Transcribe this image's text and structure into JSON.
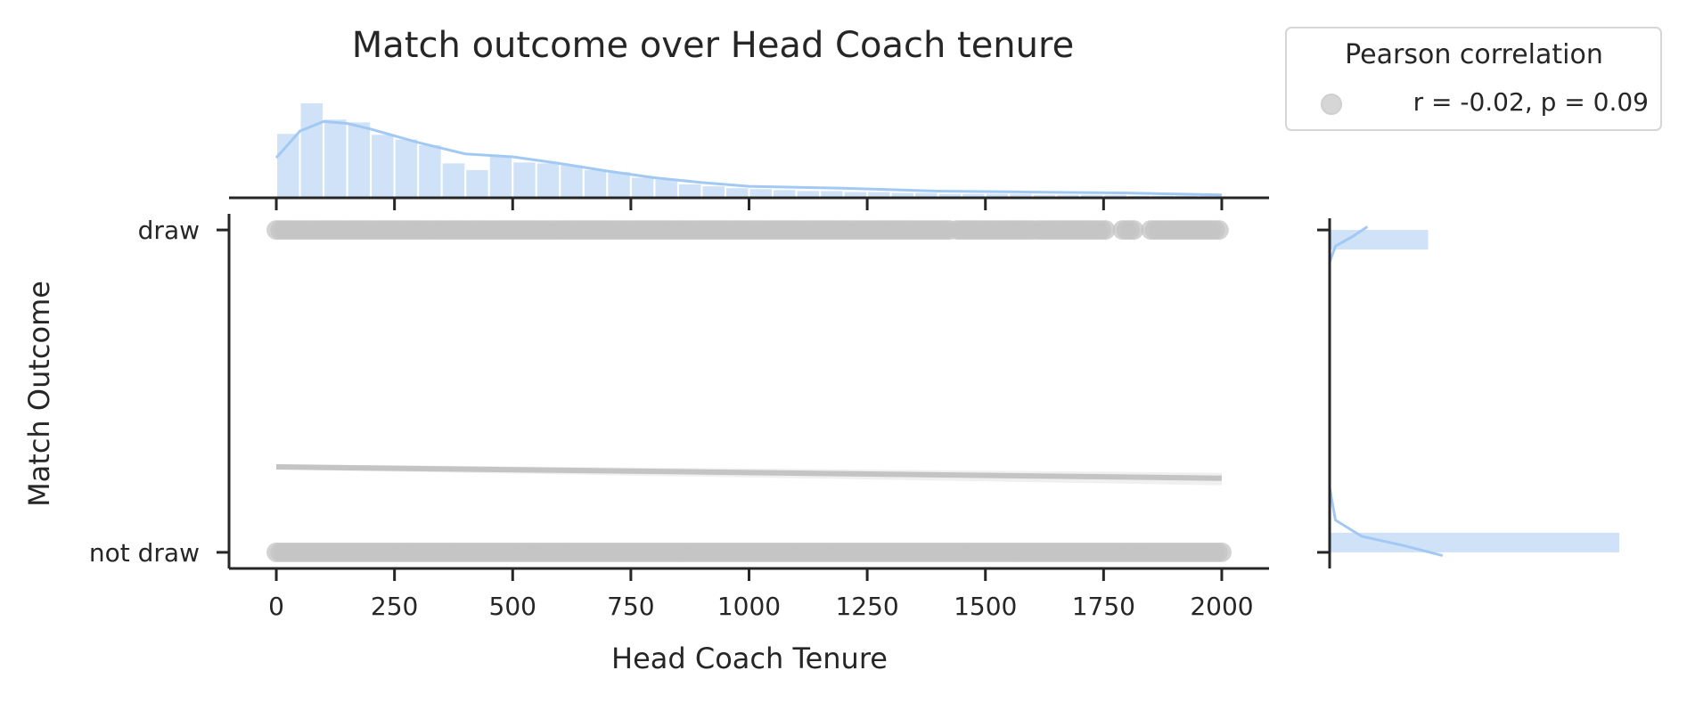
{
  "chart_data": {
    "type": "scatter",
    "title": "Match outcome over Head Coach tenure",
    "xlabel": "Head Coach Tenure",
    "ylabel": "Match Outcome",
    "xlim": [
      -100,
      2100
    ],
    "ylim": [
      -0.05,
      1.05
    ],
    "x_ticks": [
      0,
      250,
      500,
      750,
      1000,
      1250,
      1500,
      1750,
      2000
    ],
    "y_categories": [
      "not draw",
      "draw"
    ],
    "y_values": [
      0,
      1
    ],
    "colors": {
      "points": "#c4c4c4",
      "regression": "#c4c4c4",
      "marginal": "#a1c9f4",
      "marginal_fill": "#cfe2f8",
      "axis": "#262626"
    },
    "series": [
      {
        "y": 1,
        "x_ranges": [
          [
            0,
            1430
          ],
          [
            1440,
            1600
          ],
          [
            1610,
            1760
          ],
          [
            1790,
            1820
          ],
          [
            1850,
            2000
          ]
        ]
      },
      {
        "y": 0,
        "x_ranges": [
          [
            0,
            2000
          ]
        ]
      }
    ],
    "regression_line": {
      "x": [
        0,
        2000
      ],
      "y": [
        0.265,
        0.23
      ]
    },
    "top_marginal": {
      "bin_width": 50,
      "bin_starts": [
        0,
        50,
        100,
        150,
        200,
        250,
        300,
        350,
        400,
        450,
        500,
        550,
        600,
        650,
        700,
        750,
        800,
        850,
        900,
        950,
        1000,
        1050,
        1100,
        1150,
        1200,
        1250,
        1300,
        1350,
        1400,
        1450,
        1500,
        1550,
        1600,
        1650,
        1700,
        1750,
        1800,
        1850,
        1900,
        1950
      ],
      "relative_heights": [
        0.68,
        1.0,
        0.83,
        0.8,
        0.67,
        0.62,
        0.56,
        0.37,
        0.3,
        0.44,
        0.38,
        0.37,
        0.35,
        0.3,
        0.28,
        0.22,
        0.2,
        0.15,
        0.13,
        0.11,
        0.1,
        0.09,
        0.08,
        0.08,
        0.07,
        0.07,
        0.06,
        0.06,
        0.05,
        0.05,
        0.05,
        0.05,
        0.04,
        0.04,
        0.04,
        0.04,
        0.03,
        0.03,
        0.03,
        0.03
      ],
      "kde_x": [
        0,
        50,
        100,
        150,
        200,
        300,
        400,
        500,
        600,
        700,
        800,
        900,
        1000,
        1200,
        1400,
        1600,
        1800,
        2000
      ],
      "kde_relative": [
        0.42,
        0.7,
        0.8,
        0.78,
        0.72,
        0.58,
        0.46,
        0.43,
        0.36,
        0.28,
        0.21,
        0.16,
        0.12,
        0.1,
        0.07,
        0.06,
        0.05,
        0.03
      ]
    },
    "right_marginal": {
      "categories": [
        "draw",
        "not draw"
      ],
      "relative_counts": [
        0.34,
        1.0
      ],
      "kde_y": [
        1.01,
        0.98,
        0.95,
        0.9,
        0.8,
        0.5,
        0.2,
        0.1,
        0.05,
        0.02,
        -0.01
      ],
      "kde_relative": [
        0.13,
        0.08,
        0.02,
        0.0,
        0.0,
        0.0,
        0.0,
        0.02,
        0.11,
        0.26,
        0.39
      ]
    },
    "legend": {
      "title": "Pearson correlation",
      "entries": [
        "r = -0.02, p = 0.09"
      ],
      "position": "top-right"
    }
  }
}
